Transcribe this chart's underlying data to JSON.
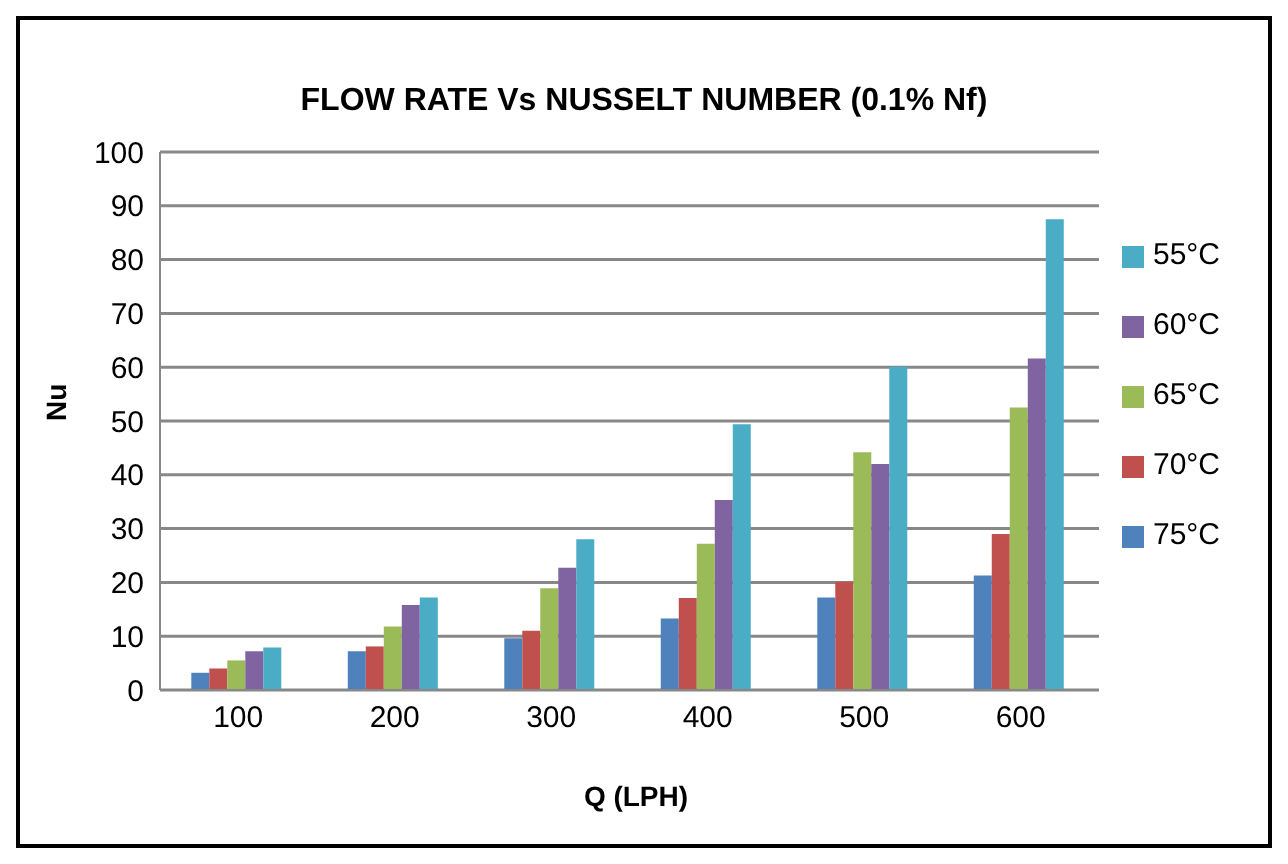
{
  "chart_data": {
    "type": "bar",
    "title": "FLOW RATE Vs NUSSELT NUMBER (0.1% Nf)",
    "xlabel": "Q (LPH)",
    "ylabel": "Nu",
    "categories": [
      "100",
      "200",
      "300",
      "400",
      "500",
      "600"
    ],
    "series": [
      {
        "name": "75°C",
        "color": "#4f81bd",
        "values": [
          3.2,
          7.2,
          9.6,
          13.3,
          17.2,
          21.3
        ]
      },
      {
        "name": "70°C",
        "color": "#c0504d",
        "values": [
          4.0,
          8.1,
          11.0,
          17.1,
          20.1,
          29.0
        ]
      },
      {
        "name": "65°C",
        "color": "#9bbb59",
        "values": [
          5.5,
          11.8,
          18.9,
          27.2,
          44.2,
          52.5
        ]
      },
      {
        "name": "60°C",
        "color": "#8064a2",
        "values": [
          7.2,
          15.8,
          22.7,
          35.3,
          42.0,
          61.6
        ]
      },
      {
        "name": "55°C",
        "color": "#4bacc6",
        "values": [
          7.9,
          17.2,
          28.0,
          49.4,
          60.1,
          87.5
        ]
      }
    ],
    "ylim": [
      0,
      100
    ],
    "yticks": [
      0,
      10,
      20,
      30,
      40,
      50,
      60,
      70,
      80,
      90,
      100
    ],
    "grid": "y",
    "legend": "right"
  }
}
